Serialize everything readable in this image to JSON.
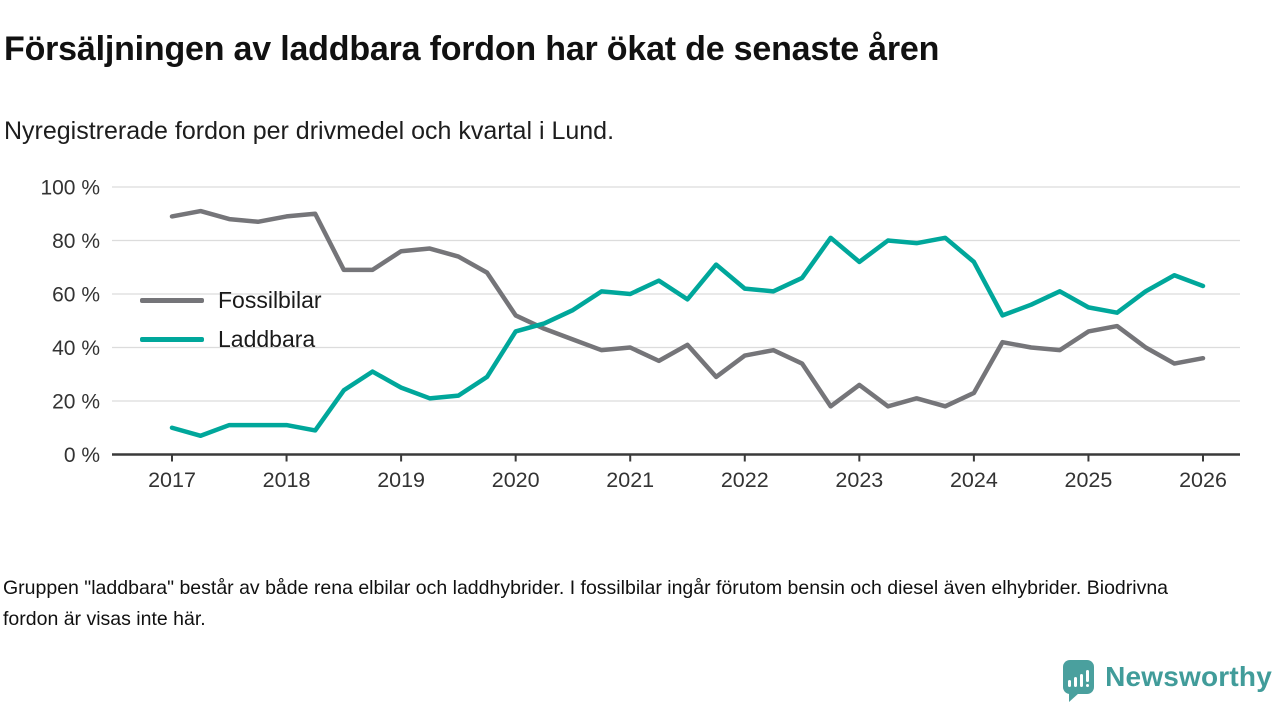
{
  "header": {
    "title": "Försäljningen av laddbara fordon har ökat de senaste åren",
    "subtitle": "Nyregistrerade fordon per drivmedel och kvartal i Lund."
  },
  "footer": {
    "note": "Gruppen \"laddbara\" består av både rena elbilar och laddhybrider. I fossilbilar ingår förutom bensin och diesel även elhybrider. Biodrivna fordon är visas inte här."
  },
  "branding": {
    "name": "Newsworthy",
    "color": "#419c9a",
    "icon": "bar-chart-speech-bubble-icon"
  },
  "chart_data": {
    "type": "line",
    "title": "Försäljningen av laddbara fordon har ökat de senaste åren",
    "subtitle": "Nyregistrerade fordon per drivmedel och kvartal i Lund.",
    "x_unit": "quarter",
    "x": [
      "2017 Q1",
      "2017 Q2",
      "2017 Q3",
      "2017 Q4",
      "2018 Q1",
      "2018 Q2",
      "2018 Q3",
      "2018 Q4",
      "2019 Q1",
      "2019 Q2",
      "2019 Q3",
      "2019 Q4",
      "2020 Q1",
      "2020 Q2",
      "2020 Q3",
      "2020 Q4",
      "2021 Q1",
      "2021 Q2",
      "2021 Q3",
      "2021 Q4",
      "2022 Q1",
      "2022 Q2",
      "2022 Q3",
      "2022 Q4",
      "2023 Q1",
      "2023 Q2",
      "2023 Q3",
      "2023 Q4",
      "2024 Q1",
      "2024 Q2",
      "2024 Q3",
      "2024 Q4",
      "2025 Q1",
      "2025 Q2",
      "2025 Q3",
      "2025 Q4",
      "2026 Q1"
    ],
    "series": [
      {
        "name": "Fossilbilar",
        "color": "#757579",
        "values": [
          89,
          91,
          88,
          87,
          89,
          90,
          69,
          69,
          76,
          77,
          74,
          68,
          52,
          47,
          43,
          39,
          40,
          35,
          41,
          29,
          37,
          39,
          34,
          18,
          26,
          18,
          21,
          18,
          23,
          42,
          40,
          39,
          46,
          48,
          40,
          34,
          36
        ]
      },
      {
        "name": "Laddbara",
        "color": "#00a79b",
        "values": [
          10,
          7,
          11,
          11,
          11,
          9,
          24,
          31,
          25,
          21,
          22,
          29,
          46,
          49,
          54,
          61,
          60,
          65,
          58,
          71,
          62,
          61,
          66,
          81,
          72,
          80,
          79,
          81,
          72,
          52,
          56,
          61,
          55,
          53,
          61,
          67,
          63
        ]
      }
    ],
    "ylim": [
      0,
      100
    ],
    "y_ticks": [
      0,
      20,
      40,
      60,
      80,
      100
    ],
    "y_tick_labels": [
      "0 %",
      "20 %",
      "40 %",
      "60 %",
      "80 %",
      "100 %"
    ],
    "x_tick_every": 4,
    "x_tick_labels": [
      "2017",
      "2018",
      "2019",
      "2020",
      "2021",
      "2022",
      "2023",
      "2024",
      "2025",
      "2026"
    ],
    "grid": "horizontal",
    "legend_position": "inside-left"
  }
}
